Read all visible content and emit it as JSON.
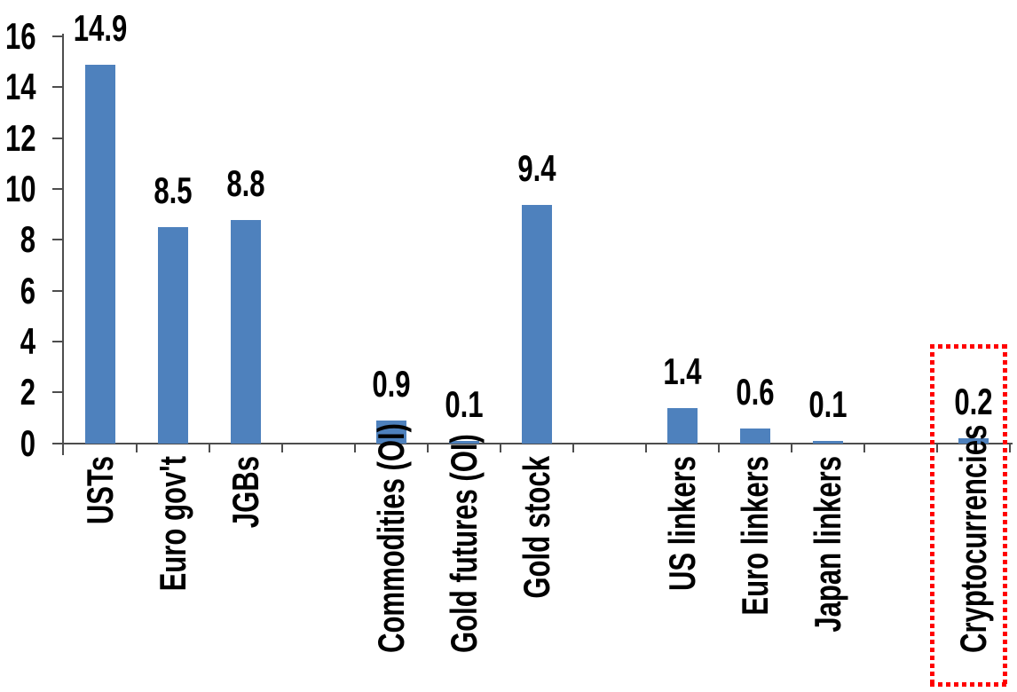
{
  "chart_data": {
    "type": "bar",
    "title": "",
    "categories": [
      "USTs",
      "Euro gov't",
      "JGBs",
      "",
      "Commodities (OI)",
      "Gold futures (OI)",
      "Gold stock",
      "",
      "US linkers",
      "Euro linkers",
      "Japan linkers",
      "",
      "Cryptocurrencies"
    ],
    "values": [
      14.9,
      8.5,
      8.8,
      null,
      0.9,
      0.1,
      9.4,
      null,
      1.4,
      0.6,
      0.1,
      null,
      0.2
    ],
    "value_labels": [
      "14.9",
      "8.5",
      "8.8",
      "",
      "0.9",
      "0.1",
      "9.4",
      "",
      "1.4",
      "0.6",
      "0.1",
      "",
      "0.2"
    ],
    "ylabel": "",
    "xlabel": "",
    "ylim": [
      0,
      16
    ],
    "yticks": [
      0,
      2,
      4,
      6,
      8,
      10,
      12,
      14,
      16
    ],
    "ytick_labels": [
      "0",
      "2",
      "4",
      "6",
      "8",
      "10",
      "12",
      "14",
      "16"
    ],
    "grid": "off",
    "legend": "none",
    "bar_color": "#4E81BD",
    "axis_color": "#4d4d4d",
    "text_color": "#000000",
    "highlight": {
      "target": "Cryptocurrencies",
      "shape": "dotted-rectangle",
      "color": "#FF0000"
    }
  }
}
